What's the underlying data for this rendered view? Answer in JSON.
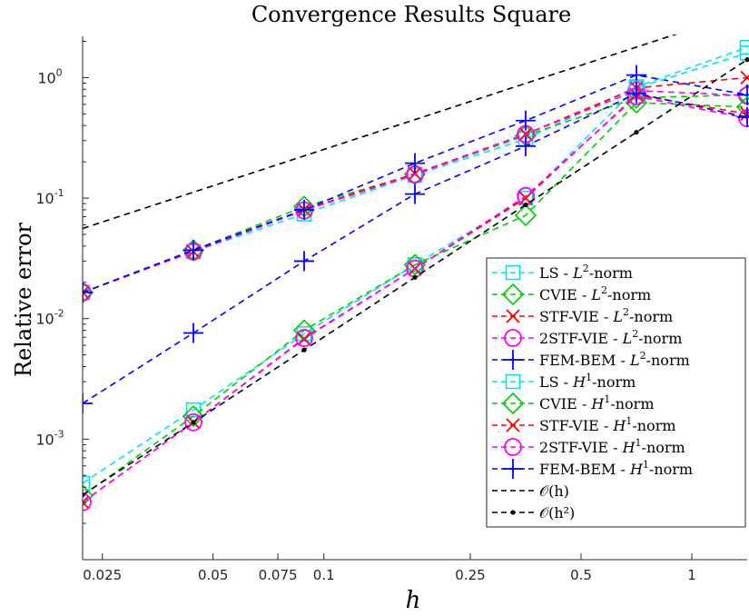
{
  "chart_data": {
    "type": "line",
    "title": "Convergence Results Square",
    "xlabel": "h",
    "ylabel": "Relative error",
    "xscale": "log",
    "yscale": "log",
    "xlim": [
      0.0221,
      1.414
    ],
    "ylim": [
      0.0001,
      2.2
    ],
    "grid": false,
    "legend_position": "bottom-right",
    "x_ticks": [
      {
        "value": 0.025,
        "label": "0.025"
      },
      {
        "value": 0.05,
        "label": "0.05"
      },
      {
        "value": 0.075,
        "label": "0.075"
      },
      {
        "value": 0.1,
        "label": "0.1"
      },
      {
        "value": 0.25,
        "label": "0.25"
      },
      {
        "value": 0.5,
        "label": "0.5"
      },
      {
        "value": 1,
        "label": "1"
      }
    ],
    "y_ticks": [
      {
        "value": 0.001,
        "base": "10",
        "exp": "-3"
      },
      {
        "value": 0.01,
        "base": "10",
        "exp": "-2"
      },
      {
        "value": 0.1,
        "base": "10",
        "exp": "-1"
      },
      {
        "value": 1,
        "base": "10",
        "exp": "0"
      }
    ],
    "x": [
      0.0221,
      0.0442,
      0.0884,
      0.1768,
      0.3536,
      0.7071,
      1.4142
    ],
    "series": [
      {
        "name_prefix": "LS - ",
        "name_norm": "L",
        "name_sup": "2",
        "name_suffix": "-norm",
        "color": "#00e6e6",
        "marker": "square",
        "line": "dashed",
        "values": [
          0.0165,
          0.036,
          0.074,
          0.155,
          0.31,
          0.84,
          1.78
        ]
      },
      {
        "name_prefix": "CVIE - ",
        "name_norm": "L",
        "name_sup": "2",
        "name_suffix": "-norm",
        "color": "#00cc00",
        "marker": "diamond",
        "line": "dashed",
        "values": [
          0.0165,
          0.037,
          0.085,
          0.158,
          0.33,
          0.68,
          0.72
        ]
      },
      {
        "name_prefix": "STF-VIE - ",
        "name_norm": "L",
        "name_sup": "2",
        "name_suffix": "-norm",
        "color": "#ff0000",
        "marker": "x",
        "line": "dashed",
        "values": [
          0.0165,
          0.036,
          0.08,
          0.16,
          0.34,
          0.82,
          1.0
        ]
      },
      {
        "name_prefix": "2STF-VIE - ",
        "name_norm": "L",
        "name_sup": "2",
        "name_suffix": "-norm",
        "color": "#ff00ff",
        "marker": "circle",
        "line": "dashed",
        "values": [
          0.0165,
          0.036,
          0.079,
          0.157,
          0.34,
          0.78,
          0.71
        ]
      },
      {
        "name_prefix": "FEM-BEM - ",
        "name_norm": "L",
        "name_sup": "2",
        "name_suffix": "-norm",
        "color": "#0000ff",
        "marker": "plus",
        "line": "dashed",
        "values": [
          0.0165,
          0.037,
          0.08,
          0.195,
          0.44,
          1.05,
          0.72
        ]
      },
      {
        "name_prefix": "LS - ",
        "name_norm": "H",
        "name_sup": "1",
        "name_suffix": "-norm",
        "color": "#00e6e6",
        "marker": "square",
        "line": "dashed",
        "values": [
          0.00043,
          0.00175,
          0.0075,
          0.028,
          0.1,
          0.82,
          1.6
        ]
      },
      {
        "name_prefix": "CVIE - ",
        "name_norm": "H",
        "name_sup": "1",
        "name_suffix": "-norm",
        "color": "#00cc00",
        "marker": "diamond",
        "line": "dashed",
        "values": [
          0.00034,
          0.00155,
          0.008,
          0.028,
          0.072,
          0.62,
          0.57
        ]
      },
      {
        "name_prefix": "STF-VIE - ",
        "name_norm": "H",
        "name_sup": "1",
        "name_suffix": "-norm",
        "color": "#ff0000",
        "marker": "x",
        "line": "dashed",
        "values": [
          0.0003,
          0.00138,
          0.0068,
          0.026,
          0.1,
          0.72,
          0.5
        ]
      },
      {
        "name_prefix": "2STF-VIE - ",
        "name_norm": "H",
        "name_sup": "1",
        "name_suffix": "-norm",
        "color": "#ff00ff",
        "marker": "circle",
        "line": "dashed",
        "values": [
          0.0003,
          0.00138,
          0.0069,
          0.026,
          0.104,
          0.7,
          0.46
        ]
      },
      {
        "name_prefix": "FEM-BEM - ",
        "name_norm": "H",
        "name_sup": "1",
        "name_suffix": "-norm",
        "color": "#0000ff",
        "marker": "plus",
        "line": "dashed",
        "values": [
          0.00198,
          0.0076,
          0.03,
          0.108,
          0.27,
          0.74,
          0.47
        ]
      },
      {
        "name_math": "𝒪(h)",
        "color": "#000000",
        "marker": "none",
        "line": "dashed",
        "values": [
          0.056,
          0.112,
          0.224,
          0.448,
          0.896,
          1.79,
          3.58
        ]
      },
      {
        "name_math": "𝒪(h²)",
        "color": "#000000",
        "marker": "dot",
        "line": "dashed",
        "values": [
          0.000345,
          0.00138,
          0.0055,
          0.022,
          0.088,
          0.352,
          1.41
        ]
      }
    ]
  }
}
